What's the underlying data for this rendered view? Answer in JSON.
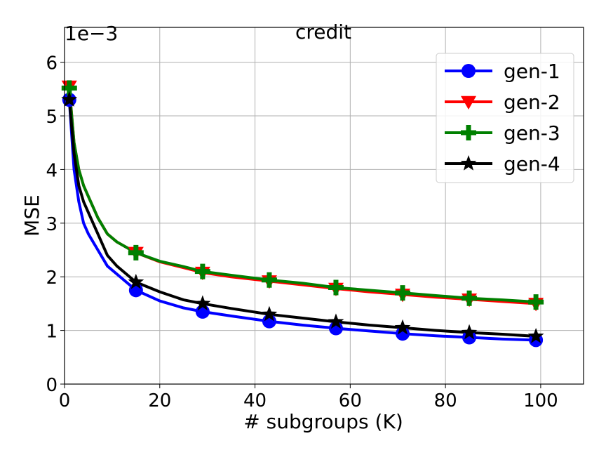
{
  "chart_data": {
    "type": "line",
    "title": "credit",
    "xlabel": "# subgroups (K)",
    "ylabel": "MSE",
    "y_offset_label": "1e−3",
    "xlim": [
      0,
      109
    ],
    "ylim": [
      0,
      6.65
    ],
    "xticks": [
      0,
      20,
      40,
      60,
      80,
      100
    ],
    "yticks": [
      0,
      1,
      2,
      3,
      4,
      5,
      6
    ],
    "grid": true,
    "legend_position": "top-right",
    "x": [
      1,
      2,
      3,
      4,
      5,
      7,
      9,
      11,
      13,
      15,
      20,
      25,
      29,
      35,
      43,
      50,
      57,
      64,
      71,
      78,
      85,
      92,
      99
    ],
    "marker_x": [
      1,
      15,
      29,
      43,
      57,
      71,
      85,
      99
    ],
    "series": [
      {
        "name": "gen-1",
        "color": "#0000ff",
        "marker": "circle",
        "values": [
          5.3,
          4.0,
          3.4,
          3.0,
          2.8,
          2.5,
          2.2,
          2.05,
          1.9,
          1.75,
          1.55,
          1.42,
          1.35,
          1.27,
          1.17,
          1.1,
          1.04,
          0.99,
          0.94,
          0.9,
          0.87,
          0.84,
          0.82
        ]
      },
      {
        "name": "gen-2",
        "color": "#ff0000",
        "marker": "triangle-down",
        "values": [
          5.55,
          4.5,
          4.0,
          3.7,
          3.5,
          3.1,
          2.8,
          2.65,
          2.55,
          2.45,
          2.28,
          2.17,
          2.08,
          2.0,
          1.92,
          1.85,
          1.78,
          1.72,
          1.67,
          1.62,
          1.58,
          1.54,
          1.5
        ]
      },
      {
        "name": "gen-3",
        "color": "#008000",
        "marker": "plus",
        "values": [
          5.52,
          4.5,
          4.0,
          3.7,
          3.5,
          3.1,
          2.8,
          2.65,
          2.55,
          2.45,
          2.29,
          2.19,
          2.1,
          2.03,
          1.94,
          1.88,
          1.8,
          1.75,
          1.7,
          1.65,
          1.6,
          1.57,
          1.53
        ]
      },
      {
        "name": "gen-4",
        "color": "#000000",
        "marker": "star",
        "values": [
          5.3,
          4.3,
          3.7,
          3.4,
          3.2,
          2.8,
          2.4,
          2.2,
          2.05,
          1.9,
          1.72,
          1.57,
          1.5,
          1.41,
          1.3,
          1.23,
          1.16,
          1.1,
          1.05,
          1.0,
          0.96,
          0.93,
          0.89
        ]
      }
    ]
  }
}
